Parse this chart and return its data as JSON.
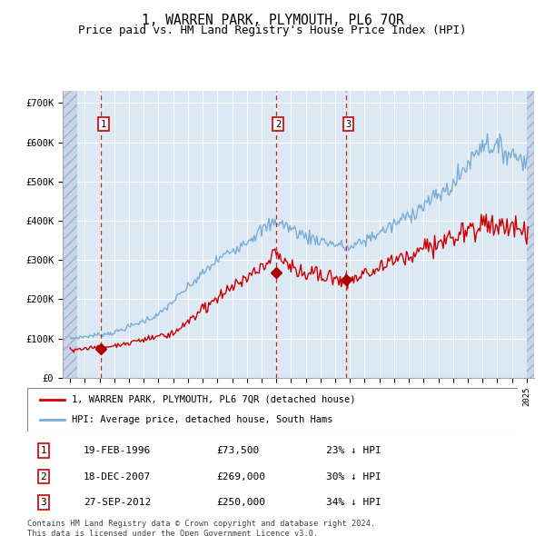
{
  "title": "1, WARREN PARK, PLYMOUTH, PL6 7QR",
  "subtitle": "Price paid vs. HM Land Registry's House Price Index (HPI)",
  "title_fontsize": 10.5,
  "subtitle_fontsize": 9,
  "bg_color": "#dde8f5",
  "red_line_color": "#cc0000",
  "blue_line_color": "#7aadd4",
  "dashed_color": "#cc2222",
  "marker_color": "#aa0000",
  "sale_dates": [
    1996.12,
    2007.96,
    2012.74
  ],
  "sale_prices": [
    73500,
    269000,
    250000
  ],
  "sale_labels": [
    "1",
    "2",
    "3"
  ],
  "legend_entries": [
    "1, WARREN PARK, PLYMOUTH, PL6 7QR (detached house)",
    "HPI: Average price, detached house, South Hams"
  ],
  "table_rows": [
    [
      "1",
      "19-FEB-1996",
      "£73,500",
      "23% ↓ HPI"
    ],
    [
      "2",
      "18-DEC-2007",
      "£269,000",
      "30% ↓ HPI"
    ],
    [
      "3",
      "27-SEP-2012",
      "£250,000",
      "34% ↓ HPI"
    ]
  ],
  "footnote": "Contains HM Land Registry data © Crown copyright and database right 2024.\nThis data is licensed under the Open Government Licence v3.0.",
  "ylim": [
    0,
    730000
  ],
  "yticks": [
    0,
    100000,
    200000,
    300000,
    400000,
    500000,
    600000,
    700000
  ],
  "ytick_labels": [
    "£0",
    "£100K",
    "£200K",
    "£300K",
    "£400K",
    "£500K",
    "£600K",
    "£700K"
  ],
  "xlim_start": 1993.5,
  "xlim_end": 2025.5,
  "hatch_left_end": 1994.5,
  "hatch_right_start": 2025.0
}
